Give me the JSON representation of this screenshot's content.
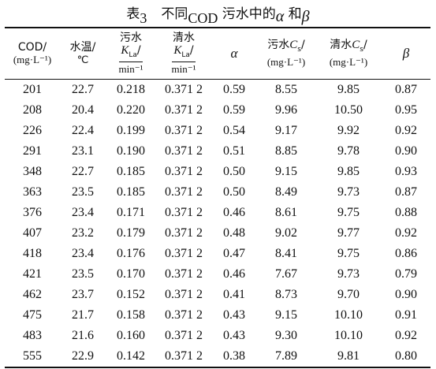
{
  "caption": {
    "table_no": "表",
    "number": "3",
    "text": "不同",
    "cod": "COD",
    "rest": "污水中的",
    "alpha": "α",
    "and": "和",
    "beta": "β"
  },
  "headers": [
    {
      "top": "COD/",
      "unit": "(mg·L⁻¹)"
    },
    {
      "top": "水温/",
      "unit": "℃"
    },
    {
      "top": "污水",
      "sym": "K",
      "sub": "La",
      "slash": "/",
      "unit": "min⁻¹"
    },
    {
      "top": "清水",
      "sym": "K",
      "sub": "La",
      "slash": "/",
      "unit": "min⁻¹"
    },
    {
      "greek": "α"
    },
    {
      "top": "污水",
      "sym": "C",
      "sub": "s",
      "slash": "/",
      "unit": "(mg·L⁻¹)"
    },
    {
      "top": "清水",
      "sym": "C",
      "sub": "s",
      "slash": "/",
      "unit": "(mg·L⁻¹)"
    },
    {
      "greek": "β"
    }
  ],
  "rows": [
    [
      "201",
      "22.7",
      "0.218",
      "0.371 2",
      "0.59",
      "8.55",
      "9.85",
      "0.87"
    ],
    [
      "208",
      "20.4",
      "0.220",
      "0.371 2",
      "0.59",
      "9.96",
      "10.50",
      "0.95"
    ],
    [
      "226",
      "22.4",
      "0.199",
      "0.371 2",
      "0.54",
      "9.17",
      "9.92",
      "0.92"
    ],
    [
      "291",
      "23.1",
      "0.190",
      "0.371 2",
      "0.51",
      "8.85",
      "9.78",
      "0.90"
    ],
    [
      "348",
      "22.7",
      "0.185",
      "0.371 2",
      "0.50",
      "9.15",
      "9.85",
      "0.93"
    ],
    [
      "363",
      "23.5",
      "0.185",
      "0.371 2",
      "0.50",
      "8.49",
      "9.73",
      "0.87"
    ],
    [
      "376",
      "23.4",
      "0.171",
      "0.371 2",
      "0.46",
      "8.61",
      "9.75",
      "0.88"
    ],
    [
      "407",
      "23.2",
      "0.179",
      "0.371 2",
      "0.48",
      "9.02",
      "9.77",
      "0.92"
    ],
    [
      "418",
      "23.4",
      "0.176",
      "0.371 2",
      "0.47",
      "8.41",
      "9.75",
      "0.86"
    ],
    [
      "421",
      "23.5",
      "0.170",
      "0.371 2",
      "0.46",
      "7.67",
      "9.73",
      "0.79"
    ],
    [
      "462",
      "23.7",
      "0.152",
      "0.371 2",
      "0.41",
      "8.73",
      "9.70",
      "0.90"
    ],
    [
      "475",
      "21.7",
      "0.158",
      "0.371 2",
      "0.43",
      "9.15",
      "10.10",
      "0.91"
    ],
    [
      "483",
      "21.6",
      "0.160",
      "0.371 2",
      "0.43",
      "9.30",
      "10.10",
      "0.92"
    ],
    [
      "555",
      "22.9",
      "0.142",
      "0.371 2",
      "0.38",
      "7.89",
      "9.81",
      "0.80"
    ]
  ]
}
